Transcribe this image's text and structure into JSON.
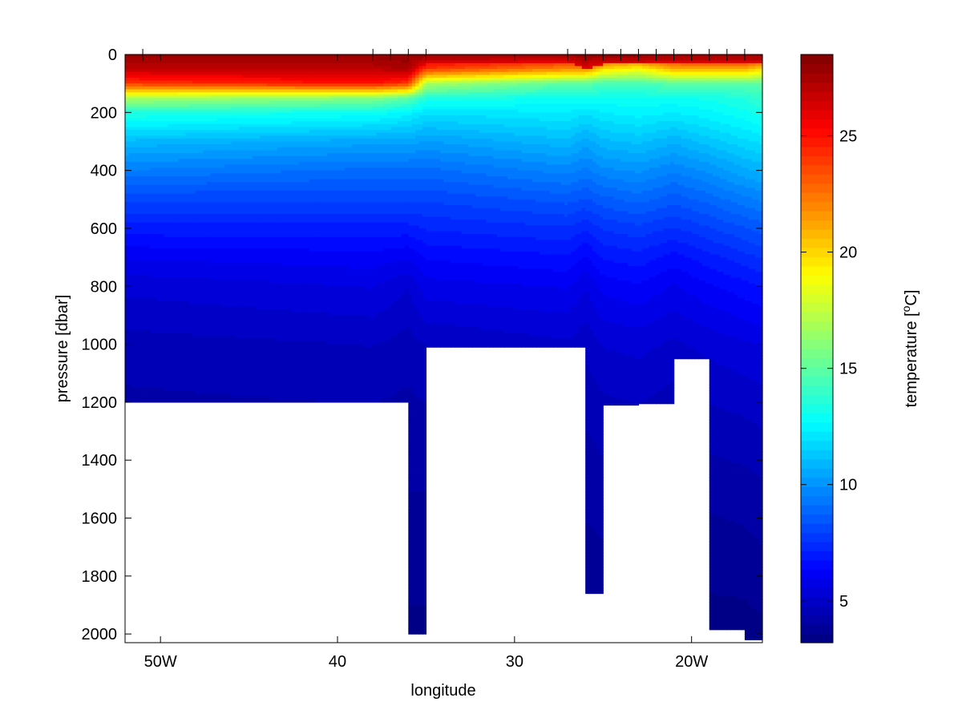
{
  "chart_data": {
    "type": "heatmap",
    "title": "",
    "xlabel": "longitude",
    "ylabel": "pressure [dbar]",
    "xlim": [
      -52,
      -16
    ],
    "ylim": [
      2030,
      0
    ],
    "x_ticks": [
      {
        "value": -50,
        "label": "50W"
      },
      {
        "value": -40,
        "label": "40"
      },
      {
        "value": -30,
        "label": "30"
      },
      {
        "value": -20,
        "label": "20W"
      }
    ],
    "y_ticks": [
      {
        "value": 0,
        "label": "0"
      },
      {
        "value": 200,
        "label": "200"
      },
      {
        "value": 400,
        "label": "400"
      },
      {
        "value": 600,
        "label": "600"
      },
      {
        "value": 800,
        "label": "800"
      },
      {
        "value": 1000,
        "label": "1000"
      },
      {
        "value": 1200,
        "label": "1200"
      },
      {
        "value": 1400,
        "label": "1400"
      },
      {
        "value": 1600,
        "label": "1600"
      },
      {
        "value": 1800,
        "label": "1800"
      },
      {
        "value": 2000,
        "label": "2000"
      }
    ],
    "station_longitudes": [
      -51,
      -38,
      -37,
      -36,
      -35,
      -27,
      -26,
      -25,
      -24,
      -23,
      -22,
      -21,
      -20,
      -19,
      -18,
      -17
    ],
    "section": {
      "longitudes": [
        -52,
        -38,
        -36,
        -35,
        -27,
        -26,
        -25,
        -23,
        -21,
        -19,
        -17,
        -16
      ],
      "bottom_pressure": [
        1200,
        1200,
        2000,
        1010,
        1010,
        1860,
        1210,
        1205,
        1050,
        1985,
        2020,
        1980
      ],
      "mixed_layer_depth": [
        40,
        60,
        80,
        30,
        25,
        50,
        35,
        35,
        30,
        30,
        30,
        30
      ],
      "temperature_profile_pressure": [
        0,
        50,
        100,
        150,
        200,
        300,
        400,
        500,
        600,
        700,
        800,
        1000,
        1200,
        1500,
        2000
      ],
      "temperature_profiles": [
        {
          "longitude": -52,
          "temperature": [
            28,
            27,
            24,
            17,
            13.5,
            11,
            9.5,
            8,
            7,
            6,
            5.3,
            4.6,
            4.3,
            4.0,
            3.5
          ]
        },
        {
          "longitude": -38,
          "temperature": [
            28,
            27,
            25,
            16,
            13,
            10.5,
            9,
            8,
            7,
            6.2,
            5.6,
            4.8,
            4.4,
            4.0,
            3.5
          ]
        },
        {
          "longitude": -36,
          "temperature": [
            28,
            27.5,
            24,
            15,
            12.5,
            10.5,
            9,
            8,
            7,
            6,
            5.2,
            4.6,
            4.3,
            4.0,
            3.5
          ]
        },
        {
          "longitude": -35,
          "temperature": [
            27,
            24,
            17,
            13.5,
            12,
            10.3,
            9,
            8,
            7.2,
            6.4,
            5.8,
            4.8,
            4.4,
            4.0,
            3.5
          ]
        },
        {
          "longitude": -27,
          "temperature": [
            26,
            22,
            15,
            13,
            12.3,
            11,
            9.7,
            8.5,
            7.5,
            6.7,
            6,
            5.1,
            4.6,
            4.1,
            3.6
          ]
        },
        {
          "longitude": -26,
          "temperature": [
            26,
            22,
            15,
            13,
            12,
            10.5,
            9.4,
            8.3,
            7.2,
            6.3,
            5.6,
            4.9,
            4.5,
            4.1,
            3.6
          ]
        },
        {
          "longitude": -25,
          "temperature": [
            25,
            20,
            14.5,
            13,
            12.3,
            11,
            9.8,
            8.6,
            7.6,
            6.8,
            6.1,
            5.2,
            4.7,
            4.2,
            3.6
          ]
        },
        {
          "longitude": -23,
          "temperature": [
            25,
            19,
            14.5,
            13,
            12.5,
            11.2,
            10,
            8.9,
            7.8,
            7,
            6.3,
            5.3,
            4.8,
            4.2,
            3.6
          ]
        },
        {
          "longitude": -21,
          "temperature": [
            26,
            21,
            15,
            13,
            12.3,
            10.8,
            9.6,
            8.5,
            7.5,
            6.6,
            5.9,
            5.1,
            4.6,
            4.1,
            3.5
          ]
        },
        {
          "longitude": -19,
          "temperature": [
            27,
            21,
            15,
            13.2,
            12.6,
            11.3,
            10,
            8.9,
            7.9,
            7,
            6.3,
            5.3,
            4.8,
            4.1,
            3.4
          ]
        },
        {
          "longitude": -17,
          "temperature": [
            27,
            21,
            15,
            13.5,
            13,
            11.8,
            10.6,
            9.4,
            8.3,
            7.4,
            6.6,
            5.5,
            4.9,
            4.2,
            3.4
          ]
        },
        {
          "longitude": -16,
          "temperature": [
            26,
            20,
            15,
            14,
            13.3,
            12,
            10.8,
            9.6,
            8.5,
            7.6,
            6.8,
            5.6,
            5.0,
            4.3,
            3.5
          ]
        }
      ]
    },
    "colorbar": {
      "label_prefix": "temperature [",
      "label_superscript": "o",
      "label_suffix": "C]",
      "range": [
        3.2,
        28.5
      ],
      "levels": 64,
      "colormap": "jet",
      "ticks": [
        {
          "value": 5,
          "label": "5"
        },
        {
          "value": 10,
          "label": "10"
        },
        {
          "value": 15,
          "label": "15"
        },
        {
          "value": 20,
          "label": "20"
        },
        {
          "value": 25,
          "label": "25"
        }
      ]
    },
    "grid": false,
    "background_color": "#ffffff"
  }
}
